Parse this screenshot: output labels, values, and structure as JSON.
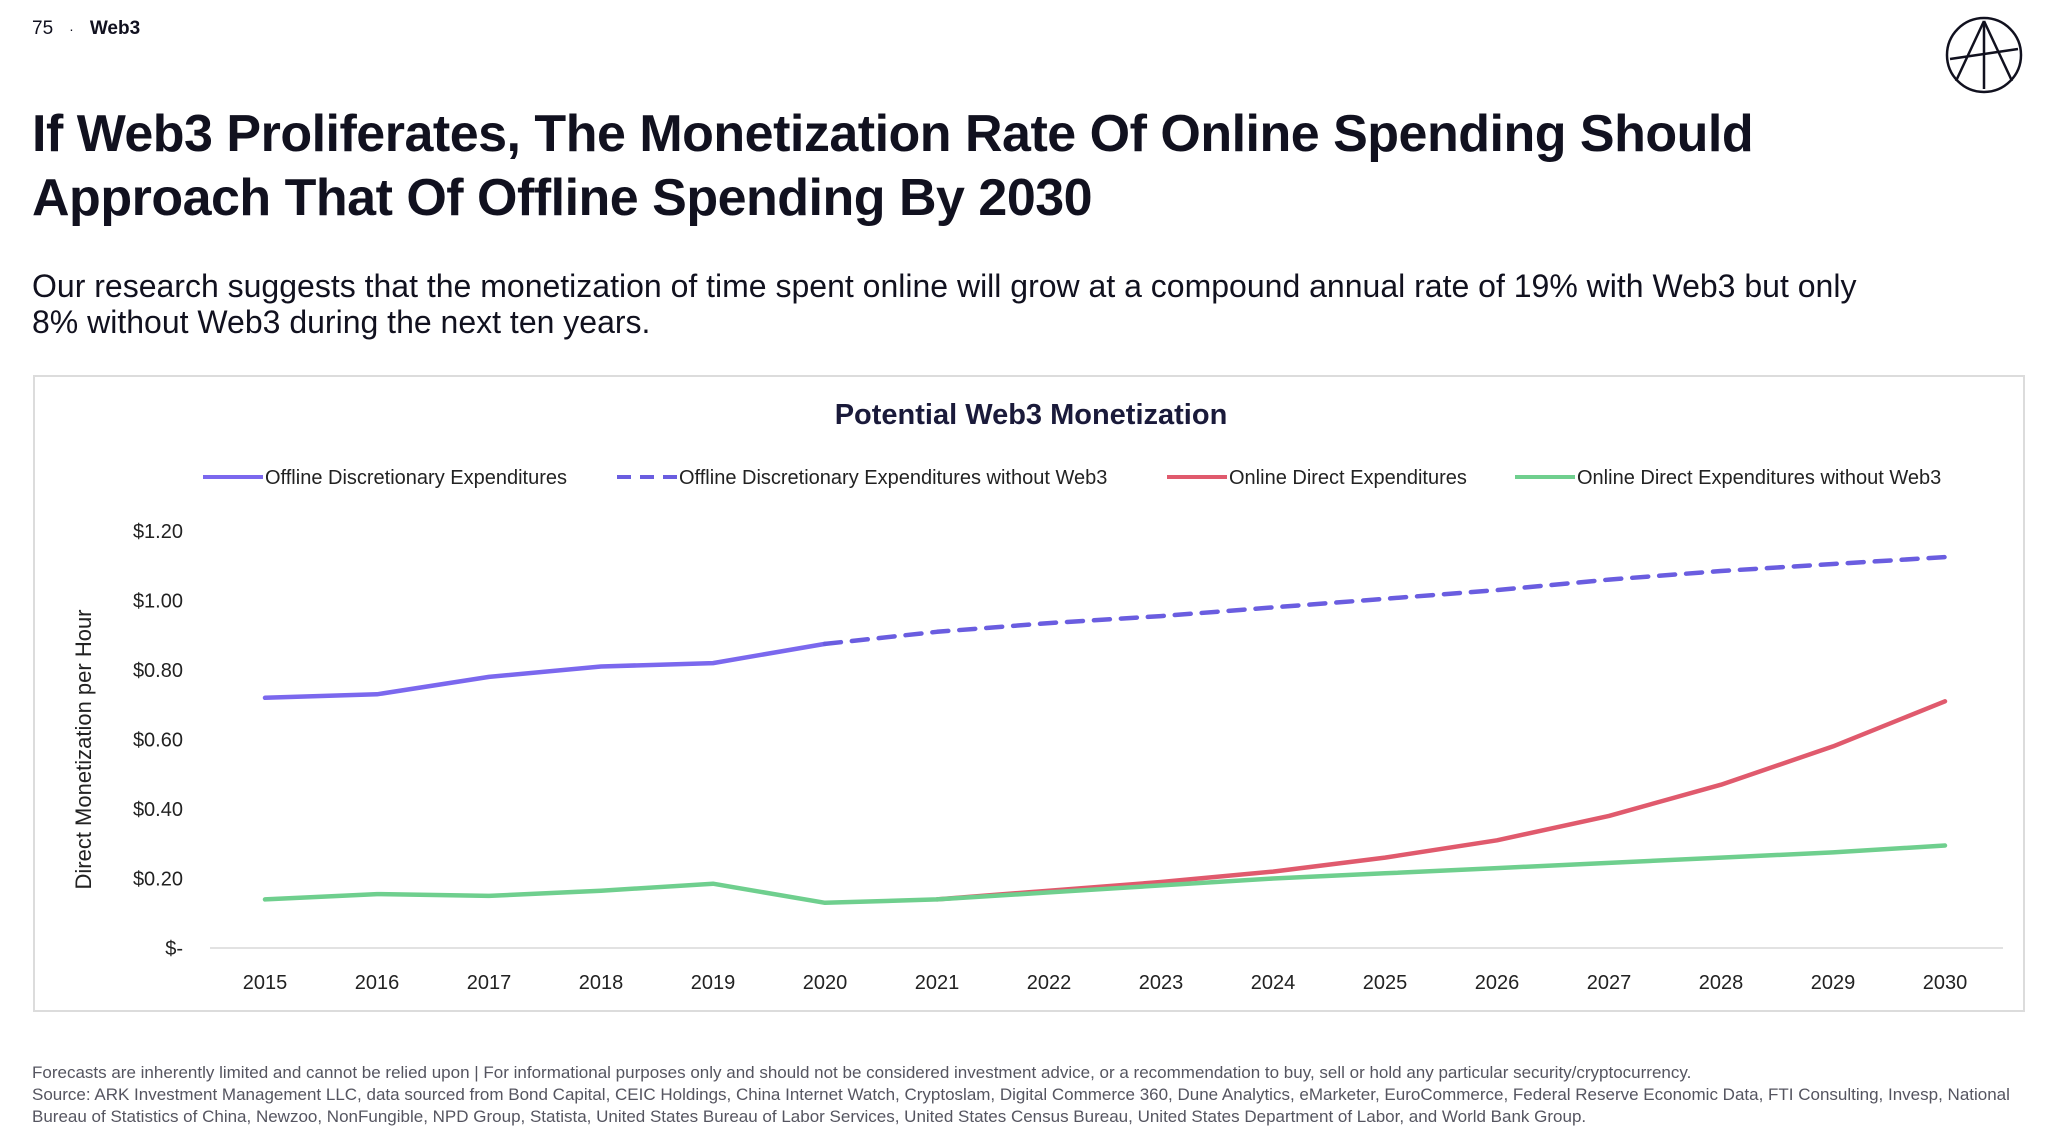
{
  "header": {
    "page_number": "75",
    "separator": "·",
    "section": "Web3"
  },
  "logo": {
    "icon": "ark-logo-icon"
  },
  "title": "If Web3 Proliferates, The Monetization Rate Of Online Spending Should Approach That Of Offline Spending By 2030",
  "subtitle": "Our research suggests that the monetization of time spent online will grow at a compound annual rate of 19% with Web3 but only 8% without Web3 during the next ten years.",
  "chart_data": {
    "type": "line",
    "title": "Potential Web3 Monetization",
    "ylabel": "Direct Monetization per Hour",
    "xlabel": "",
    "ylim": [
      0,
      1.2
    ],
    "grid": false,
    "legend_position": "top",
    "x": [
      "2015",
      "2016",
      "2017",
      "2018",
      "2019",
      "2020",
      "2021",
      "2022",
      "2023",
      "2024",
      "2025",
      "2026",
      "2027",
      "2028",
      "2029",
      "2030"
    ],
    "y_ticks": [
      {
        "value": 1.2,
        "label": "$1.20"
      },
      {
        "value": 1.0,
        "label": "$1.00"
      },
      {
        "value": 0.8,
        "label": "$0.80"
      },
      {
        "value": 0.6,
        "label": "$0.60"
      },
      {
        "value": 0.4,
        "label": "$0.40"
      },
      {
        "value": 0.2,
        "label": "$0.20"
      },
      {
        "value": 0.0,
        "label": "$-"
      }
    ],
    "series": [
      {
        "name": "Offline Discretionary Expenditures",
        "color": "#7b68ee",
        "dashed": false,
        "values": [
          0.72,
          0.73,
          0.78,
          0.81,
          0.82,
          0.875,
          null,
          null,
          null,
          null,
          null,
          null,
          null,
          null,
          null,
          null
        ]
      },
      {
        "name": "Offline Discretionary Expenditures without Web3",
        "color": "#6a5de0",
        "dashed": true,
        "values": [
          null,
          null,
          null,
          null,
          null,
          0.875,
          0.91,
          0.935,
          0.955,
          0.98,
          1.005,
          1.03,
          1.06,
          1.085,
          1.105,
          1.125
        ]
      },
      {
        "name": "Online Direct Expenditures",
        "color": "#e05a6d",
        "dashed": false,
        "values": [
          null,
          null,
          null,
          null,
          null,
          null,
          0.14,
          0.165,
          0.19,
          0.22,
          0.26,
          0.31,
          0.38,
          0.47,
          0.58,
          0.71
        ]
      },
      {
        "name": "Online Direct Expenditures without Web3",
        "color": "#6fcf8e",
        "dashed": false,
        "values": [
          0.14,
          0.155,
          0.15,
          0.165,
          0.185,
          0.13,
          0.14,
          0.16,
          0.18,
          0.2,
          0.215,
          0.23,
          0.245,
          0.26,
          0.275,
          0.295
        ]
      }
    ]
  },
  "footer": {
    "disclaimer": "Forecasts are inherently limited and cannot be relied upon | For informational purposes only and should not be considered investment advice, or a recommendation to buy, sell or hold any particular security/cryptocurrency.",
    "source": "Source: ARK Investment Management LLC, data sourced from Bond Capital, CEIC Holdings, China Internet Watch, Cryptoslam, Digital Commerce 360, Dune Analytics, eMarketer, EuroCommerce, Federal Reserve Economic Data, FTI Consulting, Invesp, National Bureau of Statistics of China, Newzoo, NonFungible, NPD Group, Statista, United States Bureau of Labor Services, United States Census Bureau, United States Department of Labor, and World Bank Group."
  }
}
